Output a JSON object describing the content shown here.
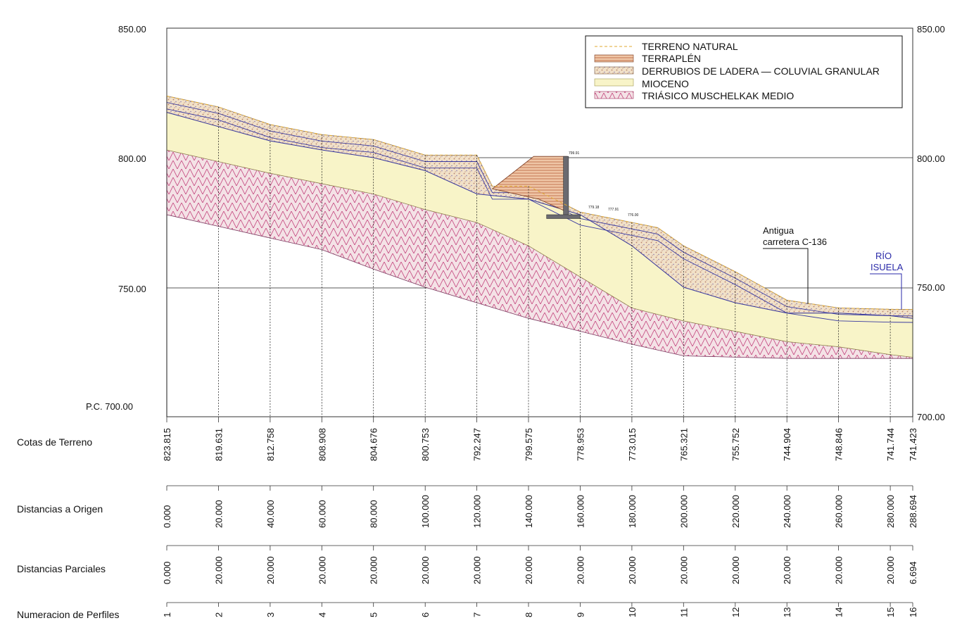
{
  "elevation_axis": {
    "ticks": [
      "850.00",
      "800.00",
      "750.00"
    ],
    "datum_left": "P.C. 700.00",
    "datum_right": "700.00"
  },
  "legend": [
    {
      "label": "TERRENO NATURAL",
      "color": "#e8c35a"
    },
    {
      "label": "TERRAPLÉN",
      "color": "#f0c8a8"
    },
    {
      "label": "DERRUBIOS DE LADERA — COLUVIAL GRANULAR",
      "color": "#e9c2a8"
    },
    {
      "label": "MIOCENO",
      "color": "#f8f4c8"
    },
    {
      "label": "TRIÁSICO MUSCHELKAK MEDIO",
      "color": "#e6c5cc"
    }
  ],
  "annotations": {
    "road_line1": "Antigua",
    "road_line2": "carretera C-136",
    "river_line1": "RÍO",
    "river_line2": "ISUELA",
    "crest": "799.91",
    "mark1": "779.18",
    "mark2": "777.91",
    "mark3": "776.00"
  },
  "table": {
    "row_labels": {
      "cotas": "Cotas de Terreno",
      "origen": "Distancias a Origen",
      "parciales": "Distancias Parciales",
      "perfiles": "Numeracion de Perfiles"
    },
    "cotas": [
      "823.815",
      "819.631",
      "812.758",
      "808.908",
      "804.676",
      "800.753",
      "792.247",
      "799.575",
      "778.953",
      "773.015",
      "765.321",
      "755.752",
      "744.904",
      "748.846",
      "741.744",
      "741.423"
    ],
    "origen": [
      "0.000",
      "20.000",
      "40.000",
      "60.000",
      "80.000",
      "100.000",
      "120.000",
      "140.000",
      "160.000",
      "180.000",
      "200.000",
      "220.000",
      "240.000",
      "260.000",
      "280.000",
      "288.694"
    ],
    "parciales": [
      "0.000",
      "20.000",
      "20.000",
      "20.000",
      "20.000",
      "20.000",
      "20.000",
      "20.000",
      "20.000",
      "20.000",
      "20.000",
      "20.000",
      "20.000",
      "20.000",
      "20.000",
      "6.694"
    ],
    "perfiles": [
      "1",
      "2",
      "3",
      "4",
      "5",
      "6",
      "7",
      "8",
      "9",
      "10",
      "11",
      "12",
      "13",
      "14",
      "15",
      "16"
    ]
  },
  "chart_data": {
    "type": "area",
    "xlabel": "",
    "ylabel": "",
    "x_range": [
      0,
      288.694
    ],
    "y_range": [
      700,
      850
    ],
    "stations_x": [
      0,
      20,
      40,
      60,
      80,
      100,
      120,
      140,
      160,
      180,
      200,
      220,
      240,
      260,
      280,
      288.694
    ],
    "terrain_elevation": [
      823.815,
      819.631,
      812.758,
      808.908,
      804.676,
      800.753,
      792.247,
      799.575,
      778.953,
      773.015,
      765.321,
      755.752,
      744.904,
      748.846,
      741.744,
      741.423
    ],
    "series": [
      {
        "name": "TRIÁSICO MUSCHELKAK MEDIO",
        "top": [
          [
            0,
            803
          ],
          [
            20,
            798.5
          ],
          [
            40,
            794
          ],
          [
            60,
            790
          ],
          [
            80,
            786
          ],
          [
            100,
            780
          ],
          [
            120,
            775
          ],
          [
            140,
            766
          ],
          [
            160,
            754
          ],
          [
            180,
            742
          ],
          [
            200,
            737
          ],
          [
            220,
            733
          ],
          [
            240,
            729
          ],
          [
            260,
            727
          ],
          [
            280,
            724
          ],
          [
            288.694,
            723
          ]
        ],
        "bottom": [
          [
            0,
            778
          ],
          [
            20,
            773.5
          ],
          [
            40,
            769
          ],
          [
            60,
            764.5
          ],
          [
            80,
            757
          ],
          [
            100,
            750
          ],
          [
            120,
            744
          ],
          [
            140,
            738
          ],
          [
            160,
            733
          ],
          [
            180,
            728
          ],
          [
            200,
            723.5
          ],
          [
            220,
            723
          ],
          [
            240,
            722.5
          ],
          [
            260,
            722.5
          ],
          [
            280,
            722.5
          ],
          [
            288.694,
            722.5
          ]
        ]
      },
      {
        "name": "MIOCENO",
        "top": [
          [
            0,
            817.5
          ],
          [
            20,
            812
          ],
          [
            40,
            806.5
          ],
          [
            60,
            803
          ],
          [
            80,
            800
          ],
          [
            100,
            795
          ],
          [
            120,
            786
          ],
          [
            140,
            784
          ],
          [
            160,
            778
          ],
          [
            180,
            766
          ],
          [
            200,
            750
          ],
          [
            220,
            744
          ],
          [
            240,
            740
          ],
          [
            260,
            740
          ],
          [
            280,
            739
          ],
          [
            288.694,
            738
          ]
        ]
      },
      {
        "name": "DERRUBIOS DE LADERA — COLUVIAL GRANULAR",
        "top": [
          [
            0,
            823.8
          ],
          [
            20,
            819.6
          ],
          [
            40,
            812.8
          ],
          [
            60,
            808.9
          ],
          [
            80,
            807
          ],
          [
            100,
            801
          ],
          [
            120,
            801
          ],
          [
            126,
            789
          ],
          [
            140,
            789
          ],
          [
            160,
            779
          ],
          [
            180,
            775
          ],
          [
            190,
            773
          ],
          [
            200,
            766
          ],
          [
            220,
            756
          ],
          [
            240,
            745
          ],
          [
            260,
            742
          ],
          [
            280,
            741.5
          ],
          [
            288.694,
            741.4
          ]
        ]
      },
      {
        "name": "TERRAPLÉN",
        "polygon": [
          [
            126,
            788
          ],
          [
            142,
            800.5
          ],
          [
            155,
            800.5
          ],
          [
            155,
            779
          ],
          [
            144,
            784
          ]
        ]
      }
    ]
  }
}
